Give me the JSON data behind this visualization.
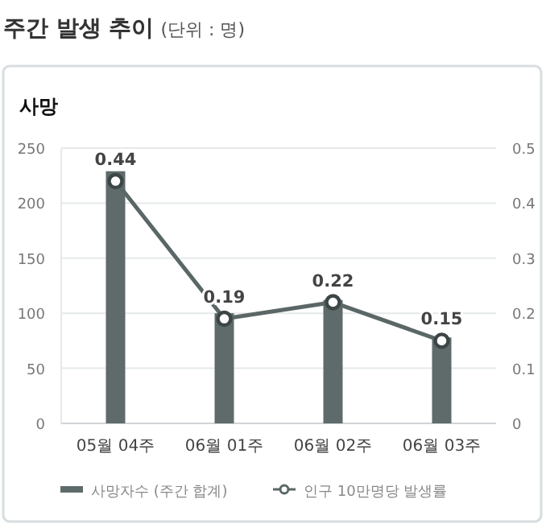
{
  "chart_data": {
    "type": "bar",
    "title": "사망",
    "annotations": [
      "주간 발생 추이",
      "(단위 : 명)"
    ],
    "categories": [
      "05월 04주",
      "06월 01주",
      "06월 02주",
      "06월 03주"
    ],
    "series": [
      {
        "name": "사망자수 (주간 합계)",
        "color": "#5f6b6b",
        "values": [
          229,
          100,
          112,
          78
        ]
      },
      {
        "name": "인구 10만명당 발생률",
        "type": "line",
        "axis": "y2",
        "color": "#5a6766",
        "marker": "circle",
        "values": [
          0.44,
          0.19,
          0.22,
          0.15
        ],
        "value_labels": [
          "0.44",
          "0.19",
          "0.22",
          "0.15"
        ]
      }
    ],
    "ylim": [
      0,
      250
    ],
    "yticks": [
      0,
      50,
      100,
      150,
      200,
      250
    ],
    "y2lim": [
      0,
      0.5
    ],
    "y2ticks": [
      0,
      0.1,
      0.2,
      0.3,
      0.4,
      0.5
    ],
    "grid": "y",
    "legend": "bottom"
  }
}
